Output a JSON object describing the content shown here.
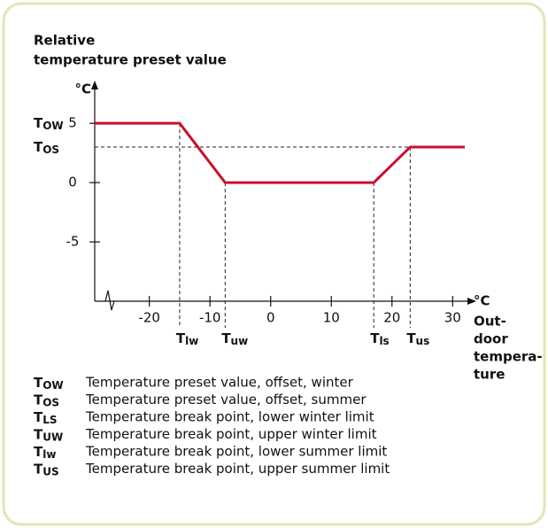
{
  "chart_data": {
    "type": "line",
    "title": [
      "Relative",
      "temperature preset value"
    ],
    "y_unit": "°C",
    "x_unit": "°C",
    "x_label": [
      "Out-",
      "door",
      "tempera-",
      "ture"
    ],
    "x": [
      -29,
      -15,
      -7.5,
      17,
      23,
      32
    ],
    "series": [
      {
        "name": "Relative temperature preset value",
        "color": "#c8102e",
        "values": [
          5,
          5,
          0,
          0,
          3,
          3
        ]
      }
    ],
    "xlim": [
      -29,
      32
    ],
    "ylim": [
      -10,
      8
    ],
    "xticks": [
      -20,
      -10,
      0,
      10,
      20,
      30
    ],
    "yticks": [
      -5,
      0,
      5
    ],
    "y_annotations": [
      {
        "letter": "T",
        "sub": "OW"
      },
      {
        "letter": "T",
        "sub": "OS"
      }
    ],
    "x_annotations": [
      {
        "letter": "T",
        "sub": "lw"
      },
      {
        "letter": "T",
        "sub": "uw"
      },
      {
        "letter": "T",
        "sub": "ls"
      },
      {
        "letter": "T",
        "sub": "us"
      }
    ],
    "legend": [
      {
        "letter": "T",
        "sub": "OW",
        "text": "Temperature preset value, offset, winter"
      },
      {
        "letter": "T",
        "sub": "OS",
        "text": "Temperature preset value, offset, summer"
      },
      {
        "letter": "T",
        "sub": "LS",
        "text": "Temperature break point, lower winter limit"
      },
      {
        "letter": "T",
        "sub": "UW",
        "text": "Temperature break point, upper winter limit"
      },
      {
        "letter": "T",
        "sub": "lw",
        "text": "Temperature break point, lower summer limit"
      },
      {
        "letter": "T",
        "sub": "US",
        "text": "Temperature break point, upper summer limit"
      }
    ]
  }
}
